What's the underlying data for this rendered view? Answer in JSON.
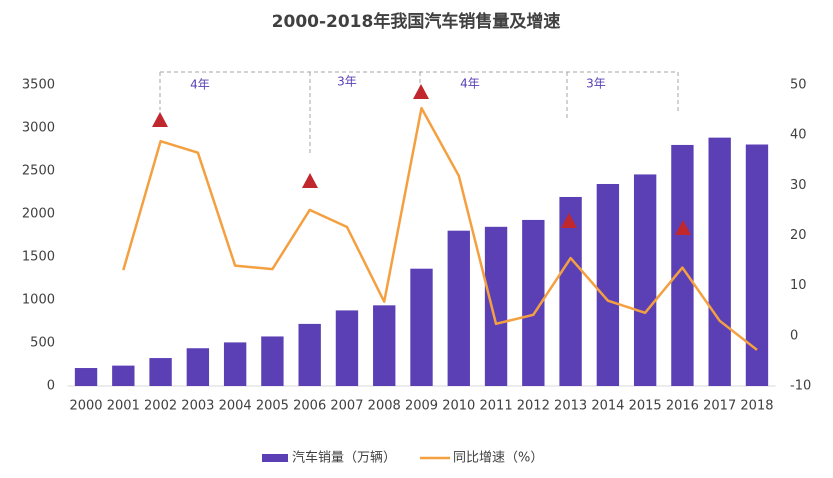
{
  "chart_data": {
    "type": "bar-line",
    "title": "2000-2018年我国汽车销售量及增速",
    "categories": [
      "2000",
      "2001",
      "2002",
      "2003",
      "2004",
      "2005",
      "2006",
      "2007",
      "2008",
      "2009",
      "2010",
      "2011",
      "2012",
      "2013",
      "2014",
      "2015",
      "2016",
      "2017",
      "2018"
    ],
    "series": [
      {
        "name": "汽车销量（万辆）",
        "type": "bar",
        "color": "#5a3fb5",
        "values": [
          209,
          237,
          325,
          439,
          507,
          576,
          722,
          879,
          938,
          1364,
          1806,
          1851,
          1931,
          2198,
          2349,
          2460,
          2803,
          2888,
          2808
        ]
      },
      {
        "name": "同比增速（%）",
        "type": "line",
        "axis": "y2",
        "color": "#f4a040",
        "values": [
          null,
          13.1,
          38.8,
          36.5,
          14,
          13.3,
          25.1,
          21.7,
          6.8,
          45.4,
          31.9,
          2.4,
          4.2,
          15.5,
          7,
          4.6,
          13.6,
          3,
          -2.8
        ]
      }
    ],
    "ylim": [
      0,
      3500
    ],
    "yticks": [
      0,
      500,
      1000,
      1500,
      2000,
      2500,
      3000,
      3500
    ],
    "y2lim": [
      -10,
      50
    ],
    "y2ticks": [
      -10,
      0,
      10,
      20,
      30,
      40,
      50
    ],
    "annotations": [
      "4年",
      "3年",
      "4年",
      "3年"
    ]
  }
}
